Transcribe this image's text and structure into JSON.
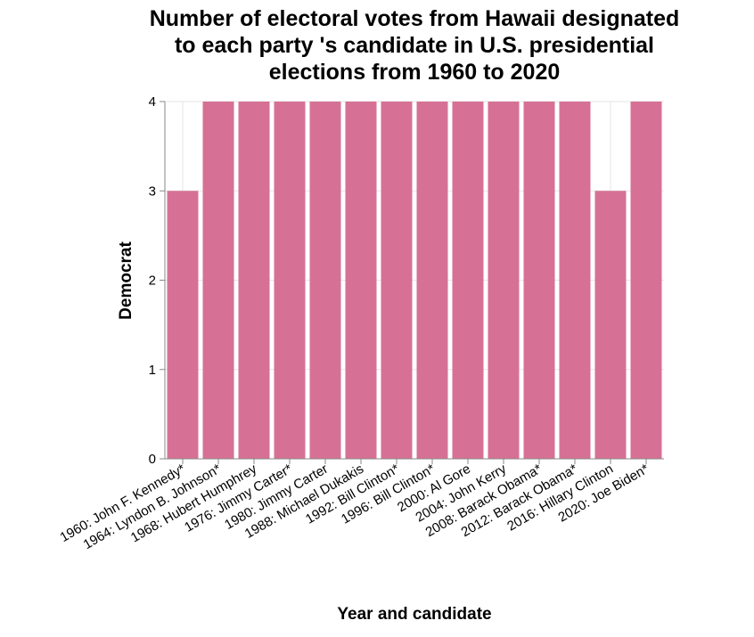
{
  "chart_data": {
    "type": "bar",
    "title_lines": [
      "Number of electoral votes from Hawaii designated",
      "to each party 's candidate in U.S. presidential",
      "elections from 1960 to 2020"
    ],
    "xlabel": "Year and candidate",
    "ylabel": "Democrat",
    "ylim": [
      0,
      4
    ],
    "yticks": [
      "0",
      "1",
      "2",
      "3",
      "4"
    ],
    "grid": true,
    "categories": [
      "1960: John F. Kennedy*",
      "1964: Lyndon B. Johnson*",
      "1968: Hubert Humphrey",
      "1976: Jimmy Carter*",
      "1980: Jimmy Carter",
      "1988: Michael Dukakis",
      "1992: Bill Clinton*",
      "1996: Bill Clinton*",
      "2000: Al Gore",
      "2004: John Kerry",
      "2008: Barack Obama*",
      "2012: Barack Obama*",
      "2016: Hillary Clinton",
      "2020: Joe Biden*"
    ],
    "values": [
      3,
      4,
      4,
      4,
      4,
      4,
      4,
      4,
      4,
      4,
      4,
      4,
      3,
      4
    ],
    "bar_color": "#d67195"
  }
}
